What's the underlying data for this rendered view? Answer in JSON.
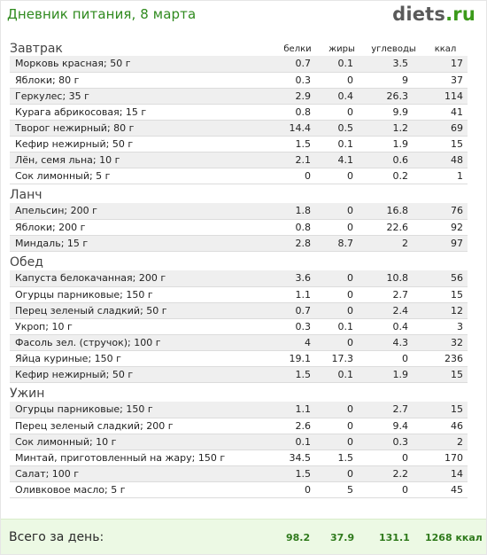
{
  "header": {
    "title": "Дневник питания, 8 марта",
    "logo_main": "diets",
    "logo_tld": ".ru"
  },
  "columns": [
    "белки",
    "жиры",
    "углеводы",
    "ккал"
  ],
  "meals": [
    {
      "name": "Завтрак",
      "items": [
        {
          "name": "Морковь красная; 50 г",
          "b": "0.7",
          "z": "0.1",
          "u": "3.5",
          "k": "17"
        },
        {
          "name": "Яблоки; 80 г",
          "b": "0.3",
          "z": "0",
          "u": "9",
          "k": "37"
        },
        {
          "name": "Геркулес; 35 г",
          "b": "2.9",
          "z": "0.4",
          "u": "26.3",
          "k": "114"
        },
        {
          "name": "Курага абрикосовая; 15 г",
          "b": "0.8",
          "z": "0",
          "u": "9.9",
          "k": "41"
        },
        {
          "name": "Творог нежирный; 80 г",
          "b": "14.4",
          "z": "0.5",
          "u": "1.2",
          "k": "69"
        },
        {
          "name": "Кефир нежирный; 50 г",
          "b": "1.5",
          "z": "0.1",
          "u": "1.9",
          "k": "15"
        },
        {
          "name": "Лён, семя льна; 10 г",
          "b": "2.1",
          "z": "4.1",
          "u": "0.6",
          "k": "48"
        },
        {
          "name": "Сок лимонный; 5 г",
          "b": "0",
          "z": "0",
          "u": "0.2",
          "k": "1"
        }
      ]
    },
    {
      "name": "Ланч",
      "items": [
        {
          "name": "Апельсин; 200 г",
          "b": "1.8",
          "z": "0",
          "u": "16.8",
          "k": "76"
        },
        {
          "name": "Яблоки; 200 г",
          "b": "0.8",
          "z": "0",
          "u": "22.6",
          "k": "92"
        },
        {
          "name": "Миндаль; 15 г",
          "b": "2.8",
          "z": "8.7",
          "u": "2",
          "k": "97"
        }
      ]
    },
    {
      "name": "Обед",
      "items": [
        {
          "name": "Капуста белокачанная; 200 г",
          "b": "3.6",
          "z": "0",
          "u": "10.8",
          "k": "56"
        },
        {
          "name": "Огурцы парниковые; 150 г",
          "b": "1.1",
          "z": "0",
          "u": "2.7",
          "k": "15"
        },
        {
          "name": "Перец зеленый сладкий; 50 г",
          "b": "0.7",
          "z": "0",
          "u": "2.4",
          "k": "12"
        },
        {
          "name": "Укроп; 10 г",
          "b": "0.3",
          "z": "0.1",
          "u": "0.4",
          "k": "3"
        },
        {
          "name": "Фасоль зел. (стручок); 100 г",
          "b": "4",
          "z": "0",
          "u": "4.3",
          "k": "32"
        },
        {
          "name": "Яйца куриные; 150 г",
          "b": "19.1",
          "z": "17.3",
          "u": "0",
          "k": "236"
        },
        {
          "name": "Кефир нежирный; 50 г",
          "b": "1.5",
          "z": "0.1",
          "u": "1.9",
          "k": "15"
        }
      ]
    },
    {
      "name": "Ужин",
      "items": [
        {
          "name": "Огурцы парниковые; 150 г",
          "b": "1.1",
          "z": "0",
          "u": "2.7",
          "k": "15"
        },
        {
          "name": "Перец зеленый сладкий; 200 г",
          "b": "2.6",
          "z": "0",
          "u": "9.4",
          "k": "46"
        },
        {
          "name": "Сок лимонный; 10 г",
          "b": "0.1",
          "z": "0",
          "u": "0.3",
          "k": "2"
        },
        {
          "name": "Минтай, приготовленный на жару; 150 г",
          "b": "34.5",
          "z": "1.5",
          "u": "0",
          "k": "170"
        },
        {
          "name": "Салат; 100 г",
          "b": "1.5",
          "z": "0",
          "u": "2.2",
          "k": "14"
        },
        {
          "name": "Оливковое масло; 5 г",
          "b": "0",
          "z": "5",
          "u": "0",
          "k": "45"
        }
      ]
    }
  ],
  "totals": {
    "label": "Всего за день:",
    "b": "98.2",
    "z": "37.9",
    "u": "131.1",
    "k": "1268 ккал"
  },
  "colors": {
    "title_green": "#2f8a1e",
    "logo_gray": "#5a5a5a",
    "logo_green": "#3b9a1a",
    "totals_bg": "#ecf9e4",
    "totals_text": "#2f7a1c",
    "row_alt": "#efefef"
  }
}
